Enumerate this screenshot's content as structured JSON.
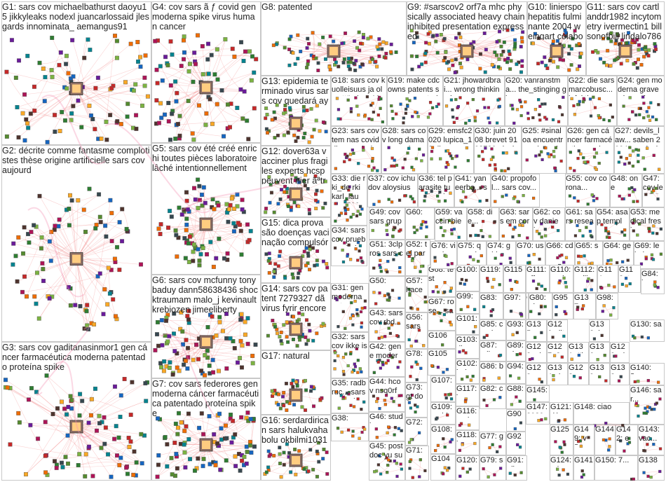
{
  "graph": {
    "groups": [
      {
        "id": "G1",
        "label": "G1: sars cov michaelbathurst daoyu15 jikkyleaks nodexl juancarlossaid jlesgards innominata_ aemangus91"
      },
      {
        "id": "G2",
        "label": "G2: décrite comme fantasme complotistes thèse origine artificielle sars cov aujourd"
      },
      {
        "id": "G3",
        "label": "G3: sars cov gaditanasinmor1 gen cáncer farmacéutica moderna patentado proteína spike"
      },
      {
        "id": "G4",
        "label": "G4: cov sars ã ƒ covid gen moderna spike virus human cancer"
      },
      {
        "id": "G5",
        "label": "G5: sars cov été créé enrichi toutes pièces laboratoire lâché intentionnellement"
      },
      {
        "id": "G6",
        "label": "G6: sars cov mcfunny tonybaduy dann58638436 shocktraumam malo_j kevinault krebiozen jimeeliberty"
      },
      {
        "id": "G7",
        "label": "G7: cov sars federores gen moderna cáncer farmacéutica patentado proteína spike"
      },
      {
        "id": "G8",
        "label": "G8: patented"
      },
      {
        "id": "G9",
        "label": "G9: #sarscov2 orf7a mhc physically associated heavy chain inhibited presentation expressed"
      },
      {
        "id": "G10",
        "label": "G10: linierspo hepatitis fulminante 2004 weingart colaboradores publicaron journal virology reportaron"
      },
      {
        "id": "G11",
        "label": "G11: sars cov cartlanddr1982 incytometry ivermectin1 billsonofbill lindalo78638237 stevenwilson777..."
      },
      {
        "id": "G12",
        "label": "G12: dover63a vacciner plus fragiles experts hcsp peuvent nier ãªtre informã"
      },
      {
        "id": "G13",
        "label": "G13: epidemia terminado virus sars cov quedará ayuda vacunas almomento4t provoca"
      },
      {
        "id": "G14",
        "label": "G14: sars cov patent 7279327 dã virus fyrir encore co brevet"
      },
      {
        "id": "G15",
        "label": "G15: dica prova são doenças vacinação compulsória sars cov botulismo doença"
      },
      {
        "id": "G16",
        "label": "G16: serdardirican sars halukvahabolu okbilmi10311253 mustafakrblt ferhatarslandr"
      },
      {
        "id": "G17",
        "label": "G17: natural"
      },
      {
        "id": "G18",
        "label": "G18: sars cov kuolleisuus ja ole että virus 10 ei 30"
      },
      {
        "id": "G19",
        "label": "G19: make cdc owns patents sars cov control over ability..."
      },
      {
        "id": "G20",
        "label": "G20: vanranstma... the_stinging ginnymooy sars cov dat..."
      },
      {
        "id": "G21",
        "label": "G21: jhowardbrai... wrong thinking immune..."
      },
      {
        "id": "G22",
        "label": "G22: die sars marcobusc... infektion erschä..."
      },
      {
        "id": "G23",
        "label": "G23: sars cov tem nas covid dia propriedade..."
      },
      {
        "id": "G24",
        "label": "G24: gen moderna grave cáncer farmacéut..."
      },
      {
        "id": "G25",
        "label": "G25: #sinaloa encuentra quinta ola..."
      },
      {
        "id": "G26",
        "label": "G26: gen cáncer farmacéutica moderna..."
      },
      {
        "id": "G27",
        "label": "G27: devils_law... saben 2004 conclusion..."
      },
      {
        "id": "G28",
        "label": "G28: sars cov long damage vaccines..."
      },
      {
        "id": "G29",
        "label": "G29: emsfc2020 lupica_18 dharana_s..."
      },
      {
        "id": "G30",
        "label": "G30: juin 2008 brevet 9193780 plusieurs..."
      },
      {
        "id": "G31",
        "label": "G31: gen moderna patenta... spike"
      },
      {
        "id": "G32",
        "label": "G32: sars cov ikke isoleret rasmus... heunick..."
      },
      {
        "id": "G33",
        "label": "G33: die rki_de rki karl_laut... 1500 mitarbei..."
      },
      {
        "id": "G34",
        "label": "G34: sars cov prueba saludos confianz..."
      },
      {
        "id": "G35",
        "label": "G35: radbruc... sars cov schroed..."
      },
      {
        "id": "G36",
        "label": "G36: tel parasite tue l'intérieur..."
      },
      {
        "id": "G37",
        "label": "G37: cov ichudov aloysiusa..."
      },
      {
        "id": "G38",
        "label": "G38:"
      },
      {
        "id": "G39",
        "label": "G39: cov sars grupp..."
      },
      {
        "id": "G40",
        "label": "G40: propofol... sars cov..."
      },
      {
        "id": "G41",
        "label": "G41: yaneerba... sars cov..."
      },
      {
        "id": "G42",
        "label": "G42: gene modern..."
      },
      {
        "id": "G43",
        "label": "G43: sars cov rbd..."
      },
      {
        "id": "G44",
        "label": "G44: hcov nsq0rfp..."
      },
      {
        "id": "G45",
        "label": "G45: postdoc yu sun..."
      },
      {
        "id": "G46",
        "label": "G46: studie..."
      },
      {
        "id": "G47",
        "label": "G47: cov letalitä morti..."
      },
      {
        "id": "G48",
        "label": "G48: one"
      },
      {
        "id": "G49",
        "label": "G49: cov sars grupp..."
      },
      {
        "id": "G50",
        "label": "G50:"
      },
      {
        "id": "G51",
        "label": "G51: 3clpros sars cov..."
      },
      {
        "id": "G52",
        "label": "G52: tel para..."
      },
      {
        "id": "G53",
        "label": "G53: medical fresh..."
      },
      {
        "id": "G54",
        "label": "G54: asap templa..."
      },
      {
        "id": "G55",
        "label": "G55: cov corona..."
      },
      {
        "id": "G56",
        "label": "G56: sars cov..."
      },
      {
        "id": "G57",
        "label": "G57: hacen..."
      },
      {
        "id": "G58",
        "label": "G58: die..."
      },
      {
        "id": "G59",
        "label": "G59: vaccin bien"
      },
      {
        "id": "G60",
        "label": "G60:"
      },
      {
        "id": "G61",
        "label": "G61: sars resear..."
      },
      {
        "id": "G62",
        "label": "G62: cov daniel..."
      },
      {
        "id": "G63",
        "label": "G63: sars em corona..."
      },
      {
        "id": "G64",
        "label": "G64: gen..."
      },
      {
        "id": "G65",
        "label": "G65: sars..."
      },
      {
        "id": "G66",
        "label": "G66: cdc..."
      },
      {
        "id": "G67",
        "label": "G67: rose... sars..."
      },
      {
        "id": "G68",
        "label": "G68: test"
      },
      {
        "id": "G69",
        "label": "G69: lehci..."
      },
      {
        "id": "G70",
        "label": "G70: usar..."
      },
      {
        "id": "G71",
        "label": "G71:"
      },
      {
        "id": "G72",
        "label": "G72: mrna rese..."
      },
      {
        "id": "G73",
        "label": "G73: gt done..."
      },
      {
        "id": "G74",
        "label": "G74: guida..."
      },
      {
        "id": "G75",
        "label": "G75: qu mal"
      },
      {
        "id": "G76",
        "label": "G76: viruel..."
      },
      {
        "id": "G77",
        "label": "G77: gen..."
      },
      {
        "id": "G78",
        "label": "G78:"
      },
      {
        "id": "G79",
        "label": "G79: sars..."
      },
      {
        "id": "G80",
        "label": "G80: chro..."
      },
      {
        "id": "G81",
        "label": "G81"
      },
      {
        "id": "G82",
        "label": "G82: cov"
      },
      {
        "id": "G83",
        "label": "G83: sars..."
      },
      {
        "id": "G84",
        "label": "G84: ba..."
      },
      {
        "id": "G85",
        "label": "G85: corni..."
      },
      {
        "id": "G86",
        "label": "G86: brun..."
      },
      {
        "id": "G87",
        "label": "G87: mike..."
      },
      {
        "id": "G88",
        "label": "G88: vacc..."
      },
      {
        "id": "G89",
        "label": "G89: só"
      },
      {
        "id": "G90",
        "label": "G90"
      },
      {
        "id": "G91",
        "label": "G91: olisi..."
      },
      {
        "id": "G92",
        "label": "G92"
      },
      {
        "id": "G93",
        "label": "G93: sars..."
      },
      {
        "id": "G94",
        "label": "G94: spa..."
      },
      {
        "id": "G95",
        "label": "G95"
      },
      {
        "id": "G96",
        "label": "G96: gue..."
      },
      {
        "id": "G97",
        "label": "G97: sars..."
      },
      {
        "id": "G98",
        "label": "G98: man..."
      },
      {
        "id": "G99",
        "label": "G99: cov..."
      },
      {
        "id": "G100",
        "label": "G100: cov"
      },
      {
        "id": "G101",
        "label": "G101: æ ç..."
      },
      {
        "id": "G102",
        "label": "G102: baby..."
      },
      {
        "id": "G103",
        "label": "G103: die..."
      },
      {
        "id": "G104",
        "label": "G104"
      },
      {
        "id": "G105",
        "label": "G105"
      },
      {
        "id": "G106",
        "label": "G106"
      },
      {
        "id": "G107",
        "label": "G107: sars..."
      },
      {
        "id": "G108",
        "label": "G108: sars..."
      },
      {
        "id": "G109",
        "label": "G109: resid..."
      },
      {
        "id": "G110",
        "label": "G110: covi..."
      },
      {
        "id": "G111",
        "label": "G111: effe..."
      },
      {
        "id": "G112",
        "label": "G112: palli..."
      },
      {
        "id": "G113",
        "label": "G113: tak..."
      },
      {
        "id": "G114",
        "label": "G114: sanc..."
      },
      {
        "id": "G115",
        "label": "G115"
      },
      {
        "id": "G116",
        "label": "G116: nada..."
      },
      {
        "id": "G117",
        "label": "G117: ì ¡..."
      },
      {
        "id": "G118",
        "label": "G118: jaar..."
      },
      {
        "id": "G119",
        "label": "G119: mas..."
      },
      {
        "id": "G120",
        "label": "G120: year..."
      },
      {
        "id": "G121",
        "label": "G121: dás..."
      },
      {
        "id": "G122",
        "label": "G122: alt..."
      },
      {
        "id": "G123",
        "label": "G123: sar..."
      },
      {
        "id": "G124",
        "label": "G124: gripe"
      },
      {
        "id": "G125",
        "label": "G125"
      },
      {
        "id": "G126",
        "label": "G126: ditt..."
      },
      {
        "id": "G127",
        "label": "G127: 85..."
      },
      {
        "id": "G128",
        "label": "G128: yap..."
      },
      {
        "id": "G129",
        "label": "G129: vir"
      },
      {
        "id": "G130",
        "label": "G130: sar..."
      },
      {
        "id": "G131",
        "label": "G131: #ks..."
      },
      {
        "id": "G132",
        "label": "G132: ba..."
      },
      {
        "id": "G133",
        "label": "G133: esp..."
      },
      {
        "id": "G134",
        "label": "G134: dose"
      },
      {
        "id": "G135",
        "label": "G135: non..."
      },
      {
        "id": "G136",
        "label": "G136: mar..."
      },
      {
        "id": "G137",
        "label": "G137: cov..."
      },
      {
        "id": "G138",
        "label": "G138"
      },
      {
        "id": "G139",
        "label": "G139: vac..."
      },
      {
        "id": "G140",
        "label": "G140: ã..."
      },
      {
        "id": "G141",
        "label": "G141"
      },
      {
        "id": "G142",
        "label": "G142: es..."
      },
      {
        "id": "G143",
        "label": "G143: vac..."
      },
      {
        "id": "G144",
        "label": "G144"
      },
      {
        "id": "G145",
        "label": "G145: aza..."
      },
      {
        "id": "G146",
        "label": "G146: sar..."
      },
      {
        "id": "G147",
        "label": "G147: 2020"
      },
      {
        "id": "G148",
        "label": "G148: ciao"
      },
      {
        "id": "G149",
        "label": "G149: vã..."
      },
      {
        "id": "G150",
        "label": "G150: 7..."
      }
    ]
  }
}
